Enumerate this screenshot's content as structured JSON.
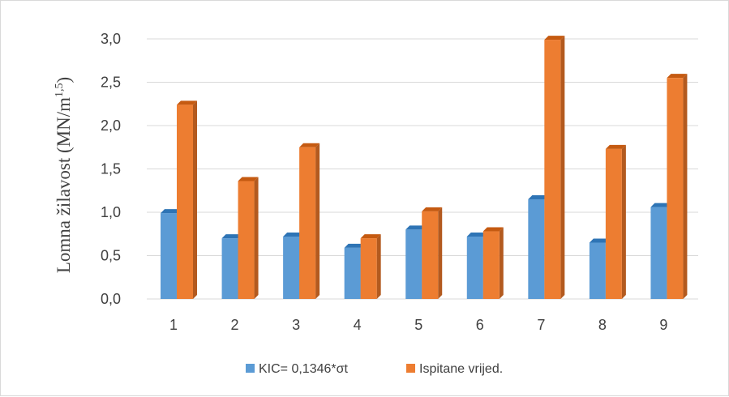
{
  "chart_data": {
    "type": "bar",
    "categories": [
      "1",
      "2",
      "3",
      "4",
      "5",
      "6",
      "7",
      "8",
      "9"
    ],
    "series": [
      {
        "name": "KIC= 0,1346*σt",
        "color": "#5b9bd5",
        "side_color": "#4a86be",
        "top_color": "#2e74b5",
        "values": [
          0.99,
          0.7,
          0.72,
          0.59,
          0.8,
          0.72,
          1.15,
          0.65,
          1.06
        ]
      },
      {
        "name": "Ispitane vrijed.",
        "color": "#ed7d31",
        "side_color": "#b35a1f",
        "top_color": "#c55a11",
        "values": [
          2.24,
          1.36,
          1.75,
          0.7,
          1.01,
          0.78,
          2.99,
          1.73,
          2.55
        ]
      }
    ],
    "y_ticks": [
      "0,0",
      "0,5",
      "1,0",
      "1,5",
      "2,0",
      "2,5",
      "3,0"
    ],
    "ylim": [
      0,
      3
    ],
    "ylabel": "Lomna žilavost (MN/m",
    "ylabel_superscript": "1,5",
    "ylabel_suffix": ")",
    "xlabel": "",
    "title": "",
    "grid": true,
    "legend_position": "bottom",
    "gridline_color": "#d9d9d9"
  }
}
